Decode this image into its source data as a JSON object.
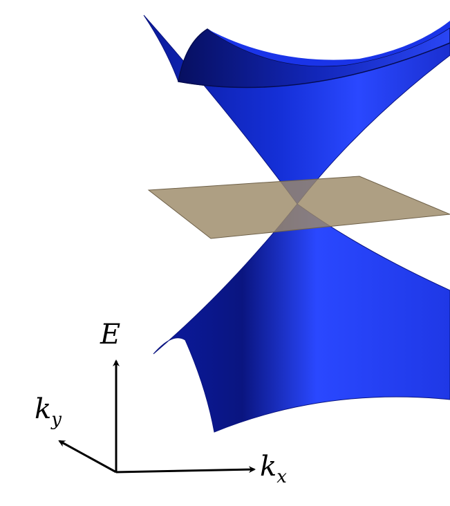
{
  "axes": {
    "energy": "E",
    "kx": {
      "symbol": "k",
      "subscript": "x"
    },
    "ky": {
      "symbol": "k",
      "subscript": "y"
    }
  }
}
